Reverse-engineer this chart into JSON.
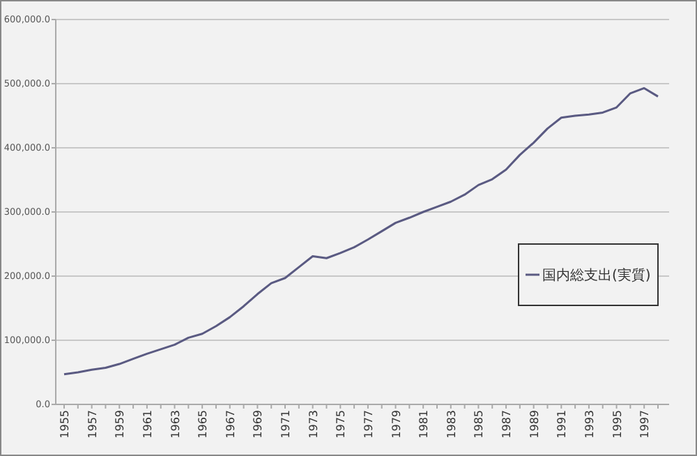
{
  "chart_data": {
    "type": "line",
    "categories": [
      "1955",
      null,
      "1957",
      null,
      "1959",
      null,
      "1961",
      null,
      "1963",
      null,
      "1965",
      null,
      "1967",
      null,
      "1969",
      null,
      "1971",
      null,
      "1973",
      null,
      "1975",
      null,
      "1977",
      null,
      "1979",
      null,
      "1981",
      null,
      "1983",
      null,
      "1985",
      null,
      "1987",
      null,
      "1989",
      null,
      "1991",
      null,
      "1993",
      null,
      "1995",
      null,
      "1997",
      null
    ],
    "series": [
      {
        "name": "国内総支出(実質)",
        "color": "#5a5a82",
        "values": [
          47000,
          50000,
          54000,
          57000,
          63000,
          71000,
          79000,
          86000,
          93000,
          104000,
          110000,
          122000,
          136000,
          153000,
          172000,
          189000,
          197000,
          214000,
          231000,
          228000,
          236000,
          245000,
          257000,
          270000,
          283000,
          291000,
          300000,
          308000,
          316000,
          327000,
          342000,
          351000,
          366000,
          389000,
          408000,
          430000,
          447000,
          450000,
          452000,
          455000,
          463000,
          485000,
          493000,
          480000
        ]
      }
    ],
    "ylim": [
      0,
      600000
    ],
    "yticks": [
      {
        "value": 0,
        "label": "0.0"
      },
      {
        "value": 100000,
        "label": "100,000.0"
      },
      {
        "value": 200000,
        "label": "200,000.0"
      },
      {
        "value": 300000,
        "label": "300,000.0"
      },
      {
        "value": 400000,
        "label": "400,000.0"
      },
      {
        "value": 500000,
        "label": "500,000.0"
      },
      {
        "value": 600000,
        "label": "600,000.0"
      }
    ],
    "grid": "y",
    "legend": "right",
    "marker": "none",
    "line_style": "solid"
  }
}
